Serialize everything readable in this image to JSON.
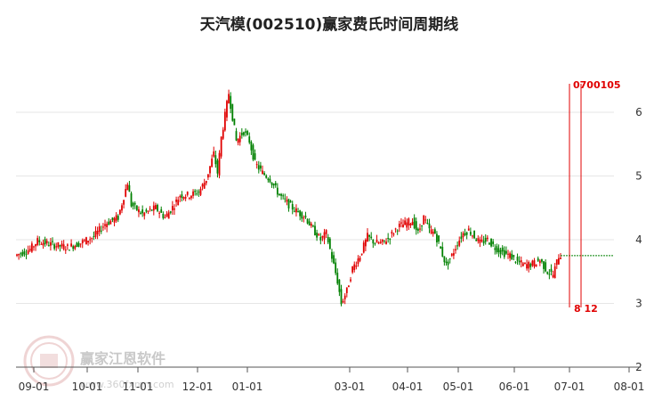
{
  "chart_data": {
    "type": "candlestick",
    "title": "天汽模(002510)赢家费氏时间周期线",
    "ylim": [
      2,
      7
    ],
    "y_ticks": [
      {
        "value": 6,
        "label": "6"
      },
      {
        "value": 5,
        "label": "5"
      },
      {
        "value": 4,
        "label": "4"
      },
      {
        "value": 3,
        "label": "3"
      },
      {
        "value": 2,
        "label": "2"
      }
    ],
    "x_ticks": [
      "09-01",
      "10-01",
      "11-01",
      "12-01",
      "01-01",
      "03-01",
      "04-01",
      "05-01",
      "06-01",
      "07-01",
      "08-01"
    ],
    "grid": true,
    "price_path": [
      [
        0,
        3.75
      ],
      [
        8,
        3.85
      ],
      [
        12,
        3.98
      ],
      [
        20,
        3.92
      ],
      [
        28,
        3.88
      ],
      [
        35,
        3.95
      ],
      [
        42,
        4.05
      ],
      [
        48,
        4.25
      ],
      [
        55,
        4.35
      ],
      [
        60,
        4.9
      ],
      [
        62,
        4.55
      ],
      [
        68,
        4.4
      ],
      [
        75,
        4.5
      ],
      [
        80,
        4.35
      ],
      [
        85,
        4.55
      ],
      [
        88,
        4.7
      ],
      [
        93,
        4.7
      ],
      [
        98,
        4.75
      ],
      [
        102,
        4.95
      ],
      [
        106,
        5.35
      ],
      [
        108,
        5.05
      ],
      [
        110,
        5.6
      ],
      [
        114,
        6.3
      ],
      [
        118,
        5.55
      ],
      [
        122,
        5.7
      ],
      [
        125,
        5.55
      ],
      [
        128,
        5.2
      ],
      [
        132,
        5.05
      ],
      [
        136,
        4.95
      ],
      [
        141,
        4.7
      ],
      [
        146,
        4.55
      ],
      [
        150,
        4.45
      ],
      [
        155,
        4.35
      ],
      [
        158,
        4.2
      ],
      [
        163,
        4.0
      ],
      [
        166,
        4.1
      ],
      [
        170,
        3.6
      ],
      [
        172,
        3.35
      ],
      [
        174,
        3.0
      ],
      [
        177,
        3.2
      ],
      [
        180,
        3.55
      ],
      [
        184,
        3.75
      ],
      [
        188,
        4.05
      ],
      [
        192,
        3.95
      ],
      [
        196,
        3.95
      ],
      [
        200,
        4.05
      ],
      [
        204,
        4.2
      ],
      [
        208,
        4.25
      ],
      [
        212,
        4.3
      ],
      [
        215,
        4.1
      ],
      [
        218,
        4.35
      ],
      [
        221,
        4.15
      ],
      [
        224,
        4.1
      ],
      [
        227,
        3.85
      ],
      [
        230,
        3.6
      ],
      [
        233,
        3.75
      ],
      [
        236,
        3.95
      ],
      [
        239,
        4.1
      ],
      [
        242,
        4.15
      ],
      [
        245,
        4.05
      ],
      [
        248,
        3.95
      ],
      [
        252,
        4.0
      ],
      [
        256,
        3.88
      ],
      [
        260,
        3.8
      ],
      [
        264,
        3.75
      ],
      [
        268,
        3.65
      ],
      [
        272,
        3.6
      ],
      [
        276,
        3.62
      ],
      [
        280,
        3.68
      ],
      [
        284,
        3.5
      ],
      [
        287,
        3.45
      ],
      [
        290,
        3.75
      ]
    ],
    "volume_profile_line": 3.75,
    "fibonacci_lines": [
      {
        "label_top": "0700105",
        "label_bottom": "8 12"
      }
    ],
    "watermark": {
      "text": "赢家江恩软件",
      "url": "www.360fxmn.com"
    }
  }
}
